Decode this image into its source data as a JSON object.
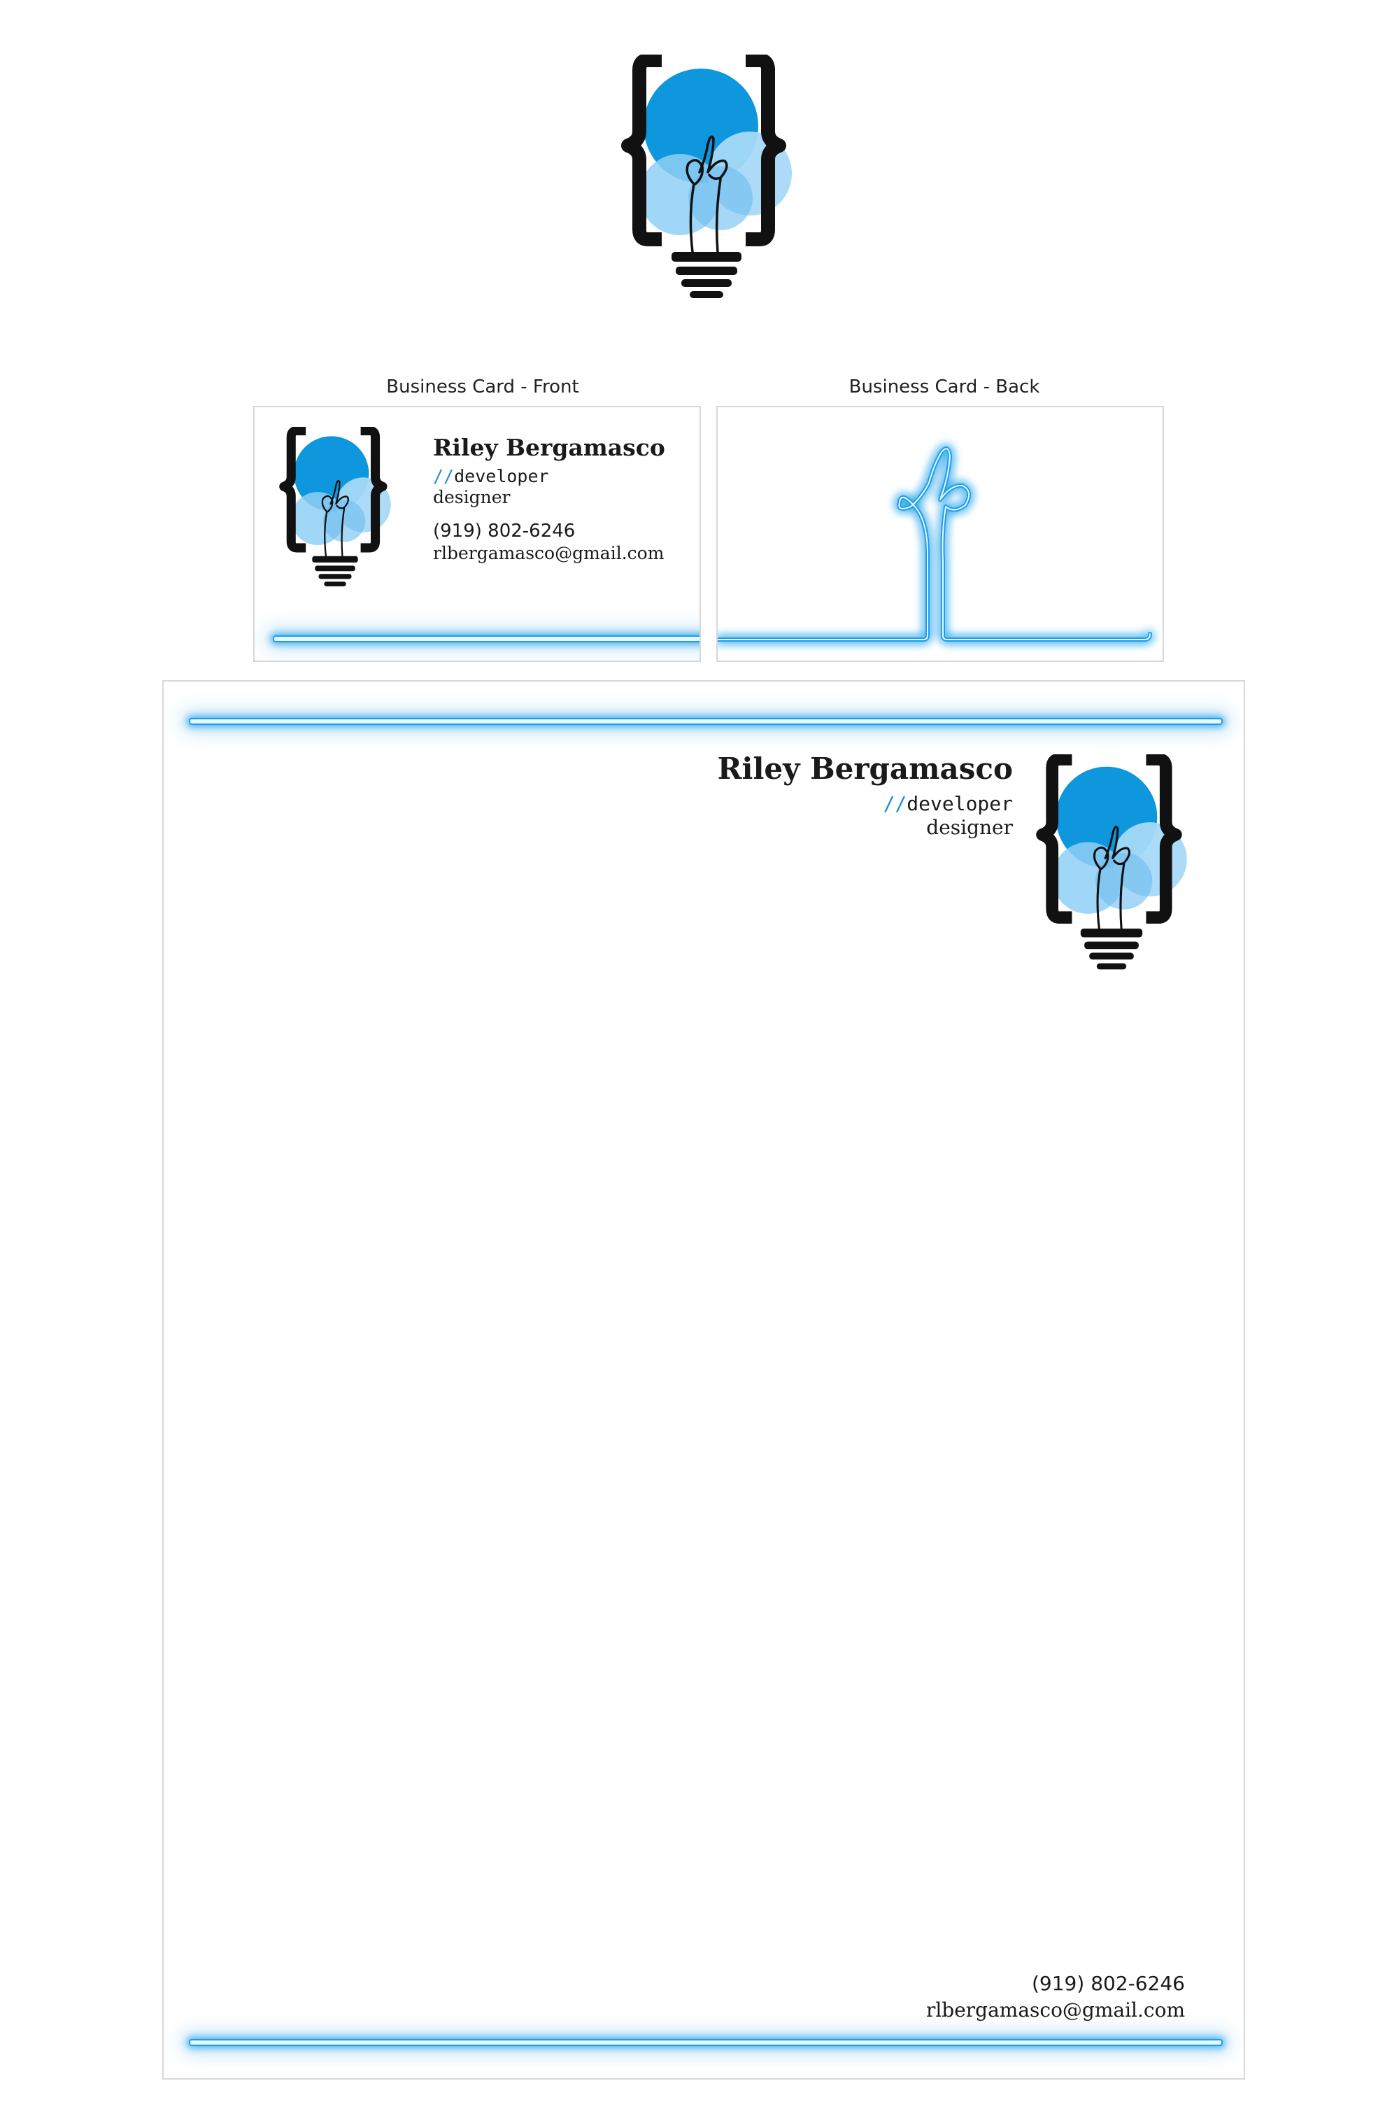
{
  "logo": {
    "monogram": "rb",
    "icon": "lightbulb-braces-icon",
    "colors": {
      "bulb_dark": "#0e97dd",
      "bulb_light": "#9fd6f6",
      "brace": "#111111"
    }
  },
  "cards": {
    "front_caption": "Business Card - Front",
    "back_caption": "Business Card - Back",
    "front": {
      "name": "Riley Bergamasco",
      "slashes": "//",
      "role1": "developer",
      "role2": "designer",
      "phone": "(919) 802-6246",
      "email": "rlbergamasco@gmail.com"
    },
    "back": {
      "monogram": "rb"
    }
  },
  "letterhead": {
    "name": "Riley Bergamasco",
    "slashes": "//",
    "role1": "developer",
    "role2": "designer",
    "phone": "(919) 802-6246",
    "email": "rlbergamasco@gmail.com"
  },
  "colors": {
    "neon": "#1e9ee8",
    "accent": "#1a8fd6",
    "text": "#1a1a1a"
  }
}
